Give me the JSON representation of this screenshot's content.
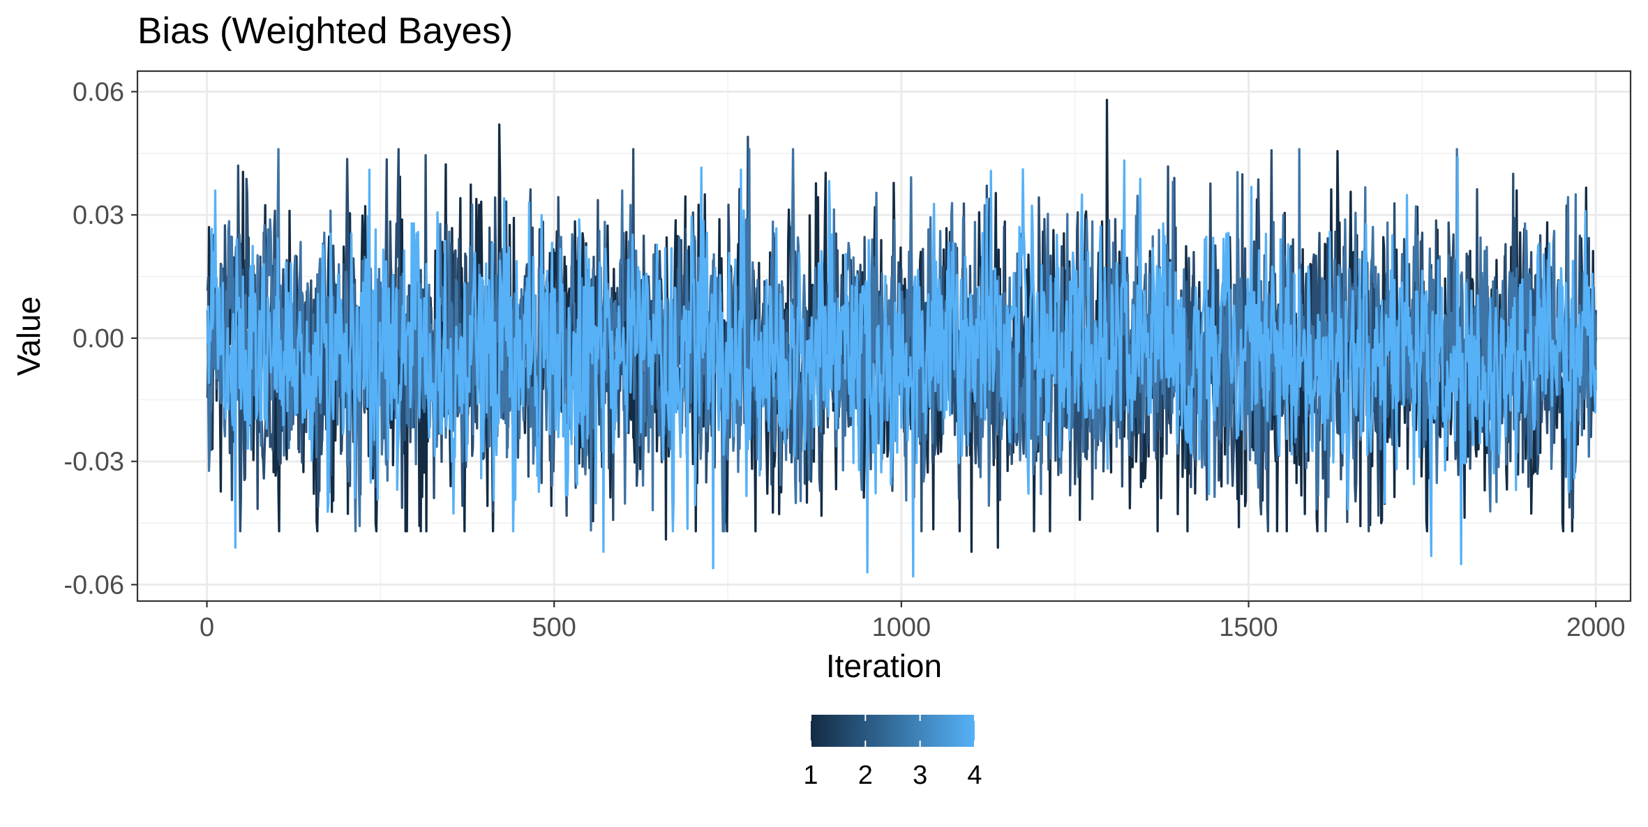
{
  "chart_data": {
    "type": "line",
    "title": "Bias (Weighted Bayes)",
    "xlabel": "Iteration",
    "ylabel": "Value",
    "xlim": [
      -100,
      2050
    ],
    "ylim": [
      -0.064,
      0.065
    ],
    "x_ticks": [
      0,
      500,
      1000,
      1500,
      2000
    ],
    "x_tick_labels": [
      "0",
      "500",
      "1000",
      "1500",
      "2000"
    ],
    "y_ticks": [
      -0.06,
      -0.03,
      0.0,
      0.03,
      0.06
    ],
    "y_tick_labels": [
      "-0.06",
      "-0.03",
      "0.00",
      "0.03",
      "0.06"
    ],
    "grid": true,
    "n_iterations": 2000,
    "series": [
      {
        "chain": 1,
        "color": "#132B43",
        "center": -0.004,
        "sd": 0.017,
        "peaks": [
          [
            1295,
            0.058
          ],
          [
            420,
            0.052
          ],
          [
            1100,
            -0.052
          ],
          [
            660,
            -0.049
          ],
          [
            1138,
            -0.051
          ],
          [
            1485,
            -0.046
          ]
        ]
      },
      {
        "chain": 2,
        "color": "#2A4E73",
        "center": -0.004,
        "sd": 0.016,
        "peaks": [
          [
            778,
            0.049
          ],
          [
            1880,
            0.04
          ],
          [
            44,
            0.042
          ],
          [
            1392,
            0.039
          ]
        ]
      },
      {
        "chain": 3,
        "color": "#3E74A6",
        "center": -0.004,
        "sd": 0.015,
        "peaks": [
          [
            1970,
            0.035
          ],
          [
            1390,
            0.038
          ]
        ]
      },
      {
        "chain": 4,
        "color": "#56B1F7",
        "center": -0.004,
        "sd": 0.014,
        "peaks": [
          [
            1800,
            0.044
          ],
          [
            1016,
            -0.058
          ],
          [
            950,
            -0.057
          ],
          [
            728,
            -0.056
          ],
          [
            40,
            -0.051
          ],
          [
            570,
            -0.052
          ],
          [
            1762,
            -0.053
          ],
          [
            1805,
            -0.055
          ],
          [
            233,
            0.041
          ],
          [
            768,
            0.041
          ]
        ]
      }
    ],
    "legend": {
      "position": "bottom",
      "type": "colorbar",
      "low_color": "#132B43",
      "high_color": "#56B1F7",
      "ticks": [
        1,
        2,
        3,
        4
      ],
      "tick_labels": [
        "1",
        "2",
        "3",
        "4"
      ]
    }
  }
}
